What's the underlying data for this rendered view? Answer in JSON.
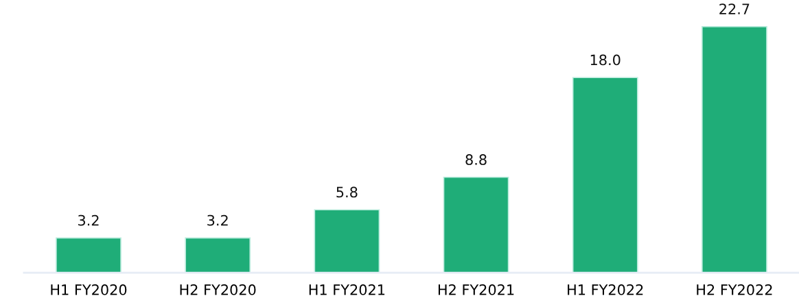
{
  "chart_data": {
    "type": "bar",
    "categories": [
      "H1 FY2020",
      "H2 FY2020",
      "H1 FY2021",
      "H2 FY2021",
      "H1 FY2022",
      "H2 FY2022"
    ],
    "values": [
      3.2,
      3.2,
      5.8,
      8.8,
      18.0,
      22.7
    ],
    "value_labels": [
      "3.2",
      "3.2",
      "5.8",
      "8.8",
      "18.0",
      "22.7"
    ],
    "color": "#1fad78",
    "grid": false,
    "legend": false,
    "tick_labels": "x"
  }
}
